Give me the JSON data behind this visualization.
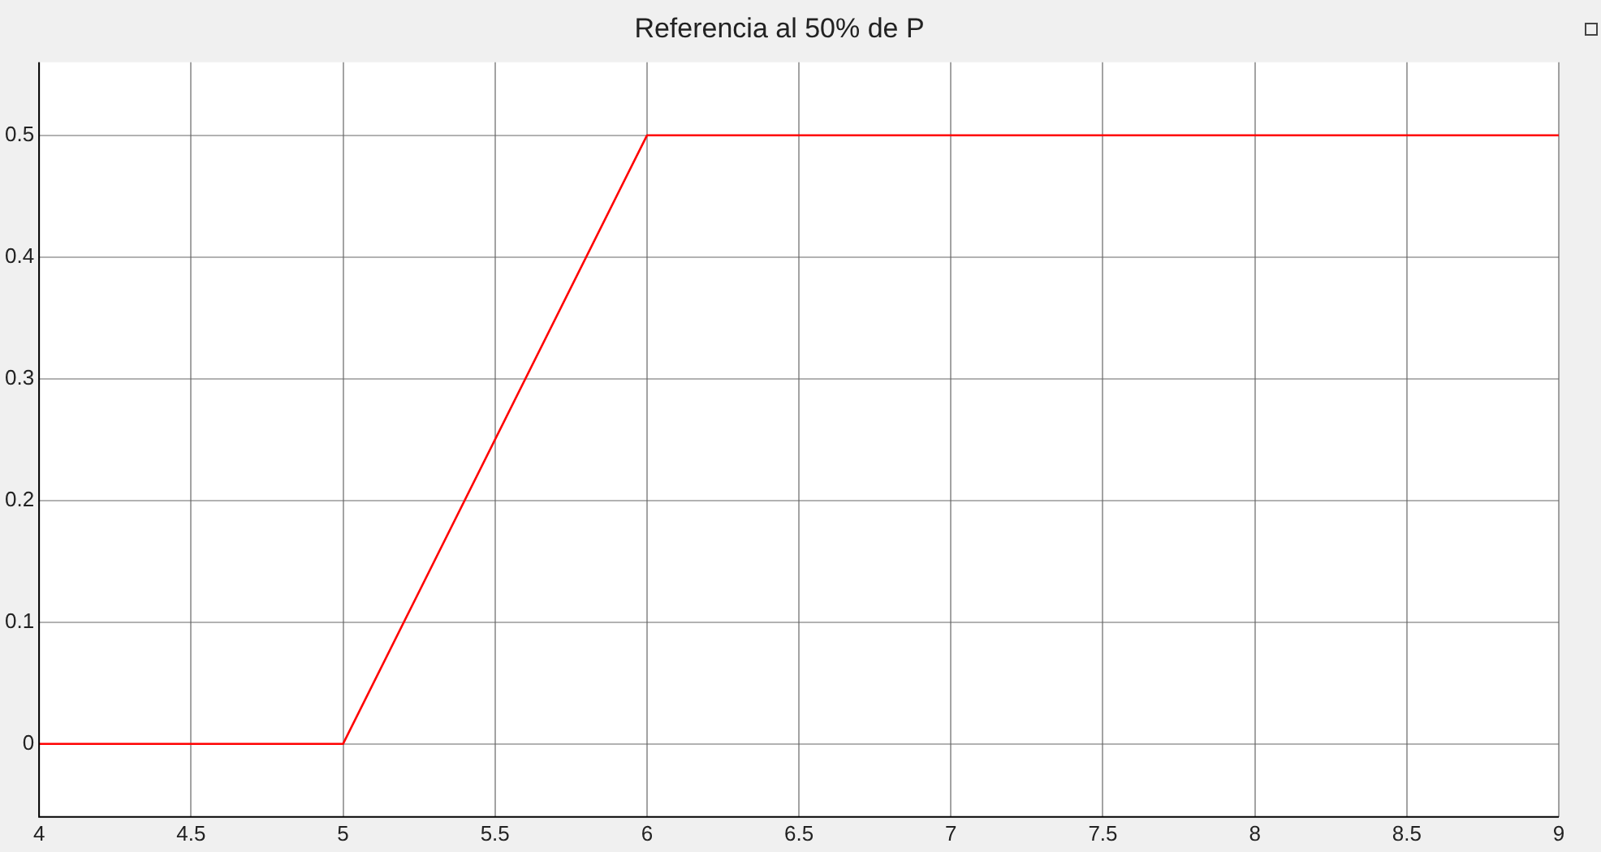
{
  "chart_data": {
    "type": "line",
    "title": "Referencia al 50% de P",
    "x": [
      4,
      5,
      6,
      9
    ],
    "series": [
      {
        "color": "#ff0000",
        "values": [
          0,
          0,
          0.5,
          0.5
        ]
      }
    ],
    "xlim": [
      4,
      9
    ],
    "xticks": [
      4,
      4.5,
      5,
      5.5,
      6,
      6.5,
      7,
      7.5,
      8,
      8.5,
      9
    ],
    "ylim": [
      -0.06,
      0.56
    ],
    "yticks": [
      0,
      0.1,
      0.2,
      0.3,
      0.4,
      0.5
    ],
    "grid": true
  }
}
